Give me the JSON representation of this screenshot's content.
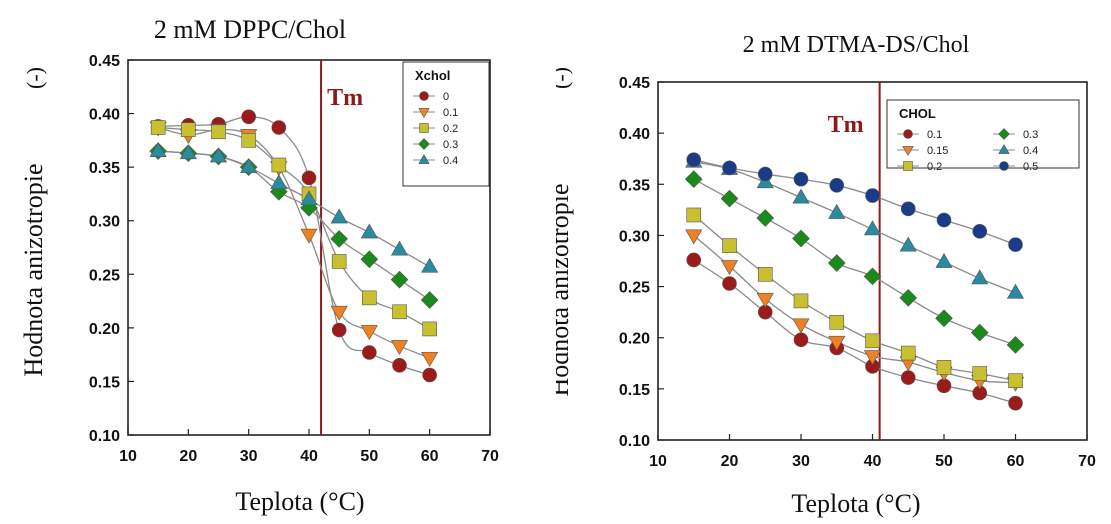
{
  "chart_data": [
    {
      "type": "scatter",
      "title": "2 mM DPPC/Chol",
      "xlabel": "Teplota (°C)",
      "ylabel": "Hodnota anizotropie",
      "ylabel_unit": "(-)",
      "xlim": [
        10,
        70
      ],
      "ylim": [
        0.1,
        0.45
      ],
      "xticks": [
        "10",
        "20",
        "30",
        "40",
        "50",
        "60",
        "70"
      ],
      "yticks": [
        "0.10",
        "0.15",
        "0.20",
        "0.25",
        "0.30",
        "0.35",
        "0.40",
        "0.45"
      ],
      "legend_title": "Xchol",
      "legend_placement": "top-right",
      "annotation": {
        "text": "Tm",
        "x": 42,
        "color": "#8b1a1a"
      },
      "x": [
        15,
        20,
        25,
        30,
        35,
        40,
        45,
        50,
        55,
        60
      ],
      "series": [
        {
          "name": "0",
          "marker": "circle",
          "color": "#9b1b1b",
          "values": [
            0.388,
            0.389,
            0.39,
            0.397,
            0.387,
            0.34,
            0.198,
            0.177,
            0.165,
            0.156
          ]
        },
        {
          "name": "0.1",
          "marker": "triangle-down",
          "color": "#f08020",
          "values": [
            0.387,
            0.38,
            0.385,
            0.38,
            0.35,
            0.287,
            0.215,
            0.197,
            0.183,
            0.172
          ]
        },
        {
          "name": "0.2",
          "marker": "square",
          "color": "#c8c030",
          "values": [
            0.387,
            0.385,
            0.383,
            0.375,
            0.352,
            0.325,
            0.262,
            0.228,
            0.215,
            0.199
          ]
        },
        {
          "name": "0.3",
          "marker": "diamond",
          "color": "#1a8a1a",
          "values": [
            0.365,
            0.363,
            0.36,
            0.35,
            0.327,
            0.312,
            0.283,
            0.264,
            0.245,
            0.226
          ]
        },
        {
          "name": "0.4",
          "marker": "triangle-up",
          "color": "#2a8aa0",
          "values": [
            0.365,
            0.363,
            0.36,
            0.35,
            0.335,
            0.32,
            0.303,
            0.289,
            0.273,
            0.257
          ]
        }
      ]
    },
    {
      "type": "scatter",
      "title": "2 mM DTMA-DS/Chol",
      "xlabel": "Teplota (°C)",
      "ylabel": "Hodnota anizotropie",
      "ylabel_unit": "(-)",
      "xlim": [
        10,
        70
      ],
      "ylim": [
        0.1,
        0.45
      ],
      "xticks": [
        "10",
        "20",
        "30",
        "40",
        "50",
        "60",
        "70"
      ],
      "yticks": [
        "0.10",
        "0.15",
        "0.20",
        "0.25",
        "0.30",
        "0.35",
        "0.40",
        "0.45"
      ],
      "legend_title": "CHOL",
      "legend_placement": "top-right",
      "annotation": {
        "text": "Tm",
        "x": 41,
        "color": "#8b1a1a"
      },
      "x": [
        15,
        20,
        25,
        30,
        35,
        40,
        45,
        50,
        55,
        60
      ],
      "series": [
        {
          "name": "0.1",
          "marker": "circle",
          "color": "#9b1b1b",
          "values": [
            0.276,
            0.253,
            0.225,
            0.198,
            0.19,
            0.172,
            0.161,
            0.153,
            0.146,
            0.136
          ]
        },
        {
          "name": "0.15",
          "marker": "triangle-down",
          "color": "#f08020",
          "values": [
            0.3,
            0.27,
            0.238,
            0.213,
            0.196,
            0.182,
            0.176,
            0.166,
            0.158,
            0.156
          ]
        },
        {
          "name": "0.2",
          "marker": "square",
          "color": "#c8c030",
          "values": [
            0.32,
            0.29,
            0.262,
            0.236,
            0.215,
            0.197,
            0.185,
            0.171,
            0.165,
            0.158
          ]
        },
        {
          "name": "0.3",
          "marker": "diamond",
          "color": "#1a8a1a",
          "values": [
            0.355,
            0.336,
            0.317,
            0.297,
            0.273,
            0.26,
            0.239,
            0.219,
            0.205,
            0.193
          ]
        },
        {
          "name": "0.4",
          "marker": "triangle-up",
          "color": "#2a8aa0",
          "values": [
            0.372,
            0.365,
            0.352,
            0.337,
            0.322,
            0.306,
            0.29,
            0.274,
            0.258,
            0.244
          ]
        },
        {
          "name": "0.5",
          "marker": "circle",
          "color": "#1a3a8a",
          "values": [
            0.374,
            0.366,
            0.36,
            0.355,
            0.349,
            0.339,
            0.326,
            0.315,
            0.304,
            0.291
          ]
        }
      ]
    }
  ]
}
